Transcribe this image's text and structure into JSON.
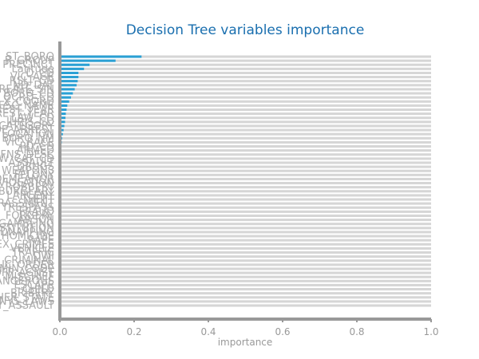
{
  "chart_data": {
    "type": "bar",
    "orientation": "horizontal",
    "title": "Decision Tree variables importance",
    "xlabel": "importance",
    "ylabel": "",
    "xlim": [
      0,
      1.0
    ],
    "xticks": [
      "0.0",
      "0.2",
      "0.4",
      "0.6",
      "0.8",
      "1.0"
    ],
    "grid": false,
    "bar_color": "#2aa0d4",
    "track_color": "#d6d6d6",
    "axis_color": "#999999",
    "categories": [
      "ST_BORO",
      "R_GROUP",
      "PRECINCT",
      "Latitude",
      "D_CD",
      "VIC_AGE",
      "RSLT_CD",
      "ND_DAT",
      "CREATE_SIN",
      "BORO_CD",
      "OCRD_CD",
      "X_COORD",
      "DESC_NAME",
      "REST_YEAR",
      "REST_YEAR",
      "LAW_CD",
      "JURIS_CD",
      "CATEGORY",
      "MADE_ARREST",
      "LOCATION",
      "BORO_NM",
      "VIC_RACE",
      "PD_CD",
      "ARMED",
      "OFNS_DESC",
      "LAW_CAT_CD",
      "ASSAULT",
      "DRUGS",
      "WEAPONS",
      "FELONY",
      "MISDEMEANOR",
      "VIOLATION",
      "ROBBERY",
      "BURGLARY",
      "LARCENY",
      "THEFT",
      "HARASSMENT",
      "TRESPASS",
      "FRAUD",
      "FORGERY",
      "ARSON",
      "GAMBLING",
      "PROSTITUTION",
      "KIDNAPPING",
      "HOMICIDE",
      "RAPE",
      "SEX_CRIMES",
      "VEHICLE",
      "TRAFFIC",
      "DWI",
      "CRIMINAL",
      "PUBLIC_ORDER",
      "ADMIN_CODE",
      "OFF_AGNST",
      "MISCHIEF",
      "DANGEROUS",
      "ESCAPE",
      "CHILD",
      "BRIBERY",
      "OTHER_STATE",
      "NYS_LAWS",
      "FELONY_ASSAULT"
    ],
    "values": [
      0.22,
      0.15,
      0.08,
      0.065,
      0.05,
      0.05,
      0.048,
      0.045,
      0.04,
      0.035,
      0.03,
      0.025,
      0.02,
      0.018,
      0.016,
      0.015,
      0.014,
      0.012,
      0.01,
      0.008,
      0.006,
      0.005,
      0.004,
      0.003,
      0.002,
      0.002,
      0.001,
      0.001,
      0.001,
      0.001,
      0.001,
      0.001,
      0.001,
      0.001,
      0.001,
      0.001,
      0.001,
      0.001,
      0.001,
      0.001,
      0.001,
      0.001,
      0.001,
      0.001,
      0.001,
      0.001,
      0.001,
      0.001,
      0.001,
      0.001,
      0.001,
      0.001,
      0.001,
      0.001,
      0.001,
      0.001,
      0.001,
      0.001,
      0.001,
      0.001,
      0.001,
      0.001
    ]
  }
}
